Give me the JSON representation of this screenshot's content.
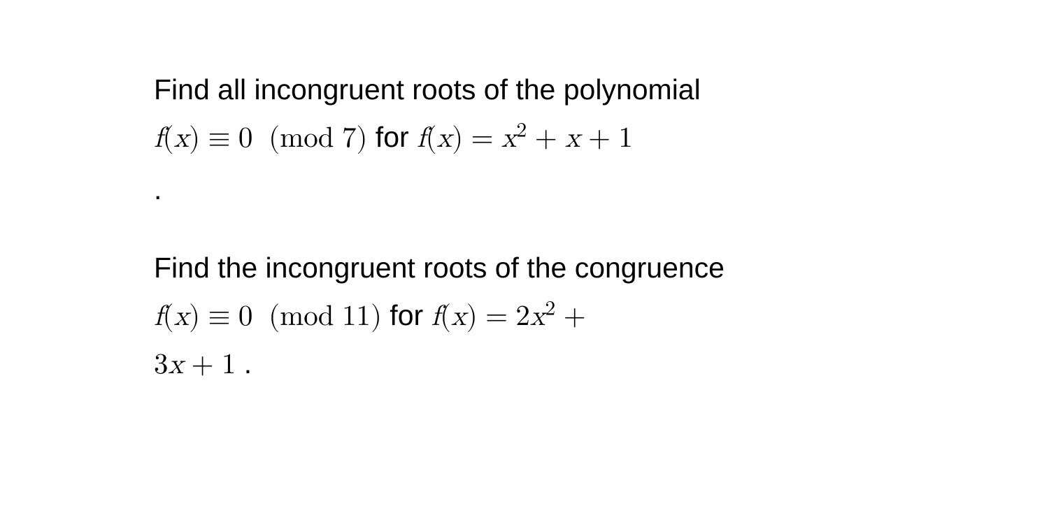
{
  "problems": [
    {
      "intro_text": "Find all incongruent roots of the polynomial",
      "lhs_func": "f",
      "lhs_arg": "x",
      "equiv": "≡",
      "zero": "0",
      "mod_open": "(",
      "mod_word": "mod",
      "mod_value": "7",
      "mod_close": ")",
      "for_word": " for ",
      "rhs_func": "f",
      "rhs_arg": "x",
      "equals": "=",
      "poly_var": "x",
      "poly_exp": "2",
      "plus1": "+",
      "term2_var": "x",
      "plus2": "+",
      "term3": "1"
    },
    {
      "intro_text": "Find the incongruent roots of the congruence",
      "lhs_func": "f",
      "lhs_arg": "x",
      "equiv": "≡",
      "zero": "0",
      "mod_open": "(",
      "mod_word": "mod",
      "mod_value": "11",
      "mod_close": ")",
      "for_word": " for ",
      "rhs_func": "f",
      "rhs_arg": "x",
      "equals": "=",
      "coef1": "2",
      "poly_var": "x",
      "poly_exp": "2",
      "plus1": "+",
      "coef2": "3",
      "term2_var": "x",
      "plus2": "+",
      "term3": "1",
      "end_period": " ."
    }
  ],
  "separator_dot": ".",
  "text_color": "#000000",
  "background_color": "#ffffff",
  "font_size_body": 41
}
